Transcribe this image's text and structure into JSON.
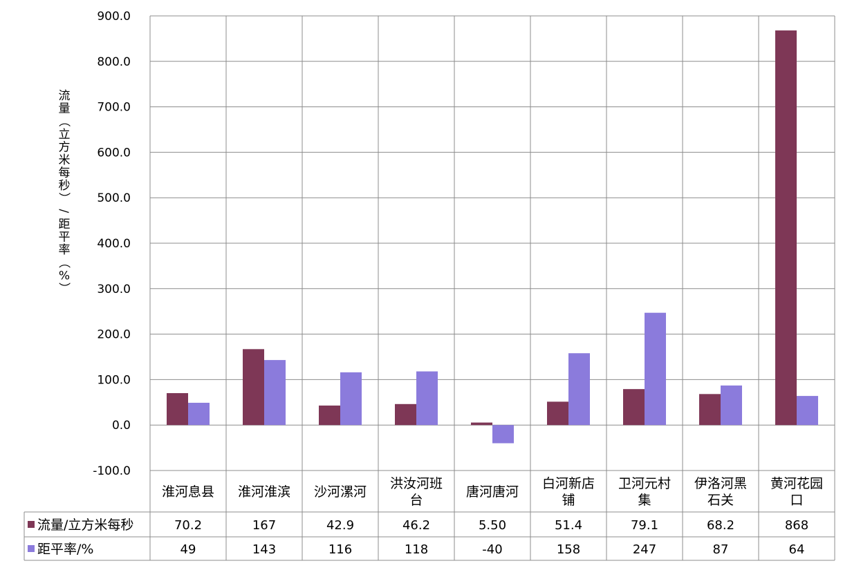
{
  "chart_data": {
    "type": "bar",
    "ylabel": "流量（立方米每秒）/距平率（%）",
    "ylim": [
      -100,
      900
    ],
    "yticks": [
      "900.0",
      "800.0",
      "700.0",
      "600.0",
      "500.0",
      "400.0",
      "300.0",
      "200.0",
      "100.0",
      "0.0",
      "-100.0"
    ],
    "ytick_values": [
      900,
      800,
      700,
      600,
      500,
      400,
      300,
      200,
      100,
      0,
      -100
    ],
    "categories": [
      [
        "淮河息县"
      ],
      [
        "淮河淮滨"
      ],
      [
        "沙河漯河"
      ],
      [
        "洪汝河班",
        "台"
      ],
      [
        "唐河唐河"
      ],
      [
        "白河新店",
        "铺"
      ],
      [
        "卫河元村",
        "集"
      ],
      [
        "伊洛河黑",
        "石关"
      ],
      [
        "黄河花园",
        "口"
      ]
    ],
    "grid": true,
    "legend": "data-table",
    "series": [
      {
        "name": "流量/立方米每秒",
        "color": "#7E3756",
        "values": [
          70.2,
          167,
          42.9,
          46.2,
          5.5,
          51.4,
          79.1,
          68.2,
          868
        ],
        "labels": [
          "70.2",
          "167",
          "42.9",
          "46.2",
          "5.50",
          "51.4",
          "79.1",
          "68.2",
          "868"
        ]
      },
      {
        "name": "距平率/%",
        "color": "#8B7BDC",
        "values": [
          49,
          143,
          116,
          118,
          -40,
          158,
          247,
          87,
          64
        ],
        "labels": [
          "49",
          "143",
          "116",
          "118",
          "-40",
          "158",
          "247",
          "87",
          "64"
        ]
      }
    ]
  }
}
